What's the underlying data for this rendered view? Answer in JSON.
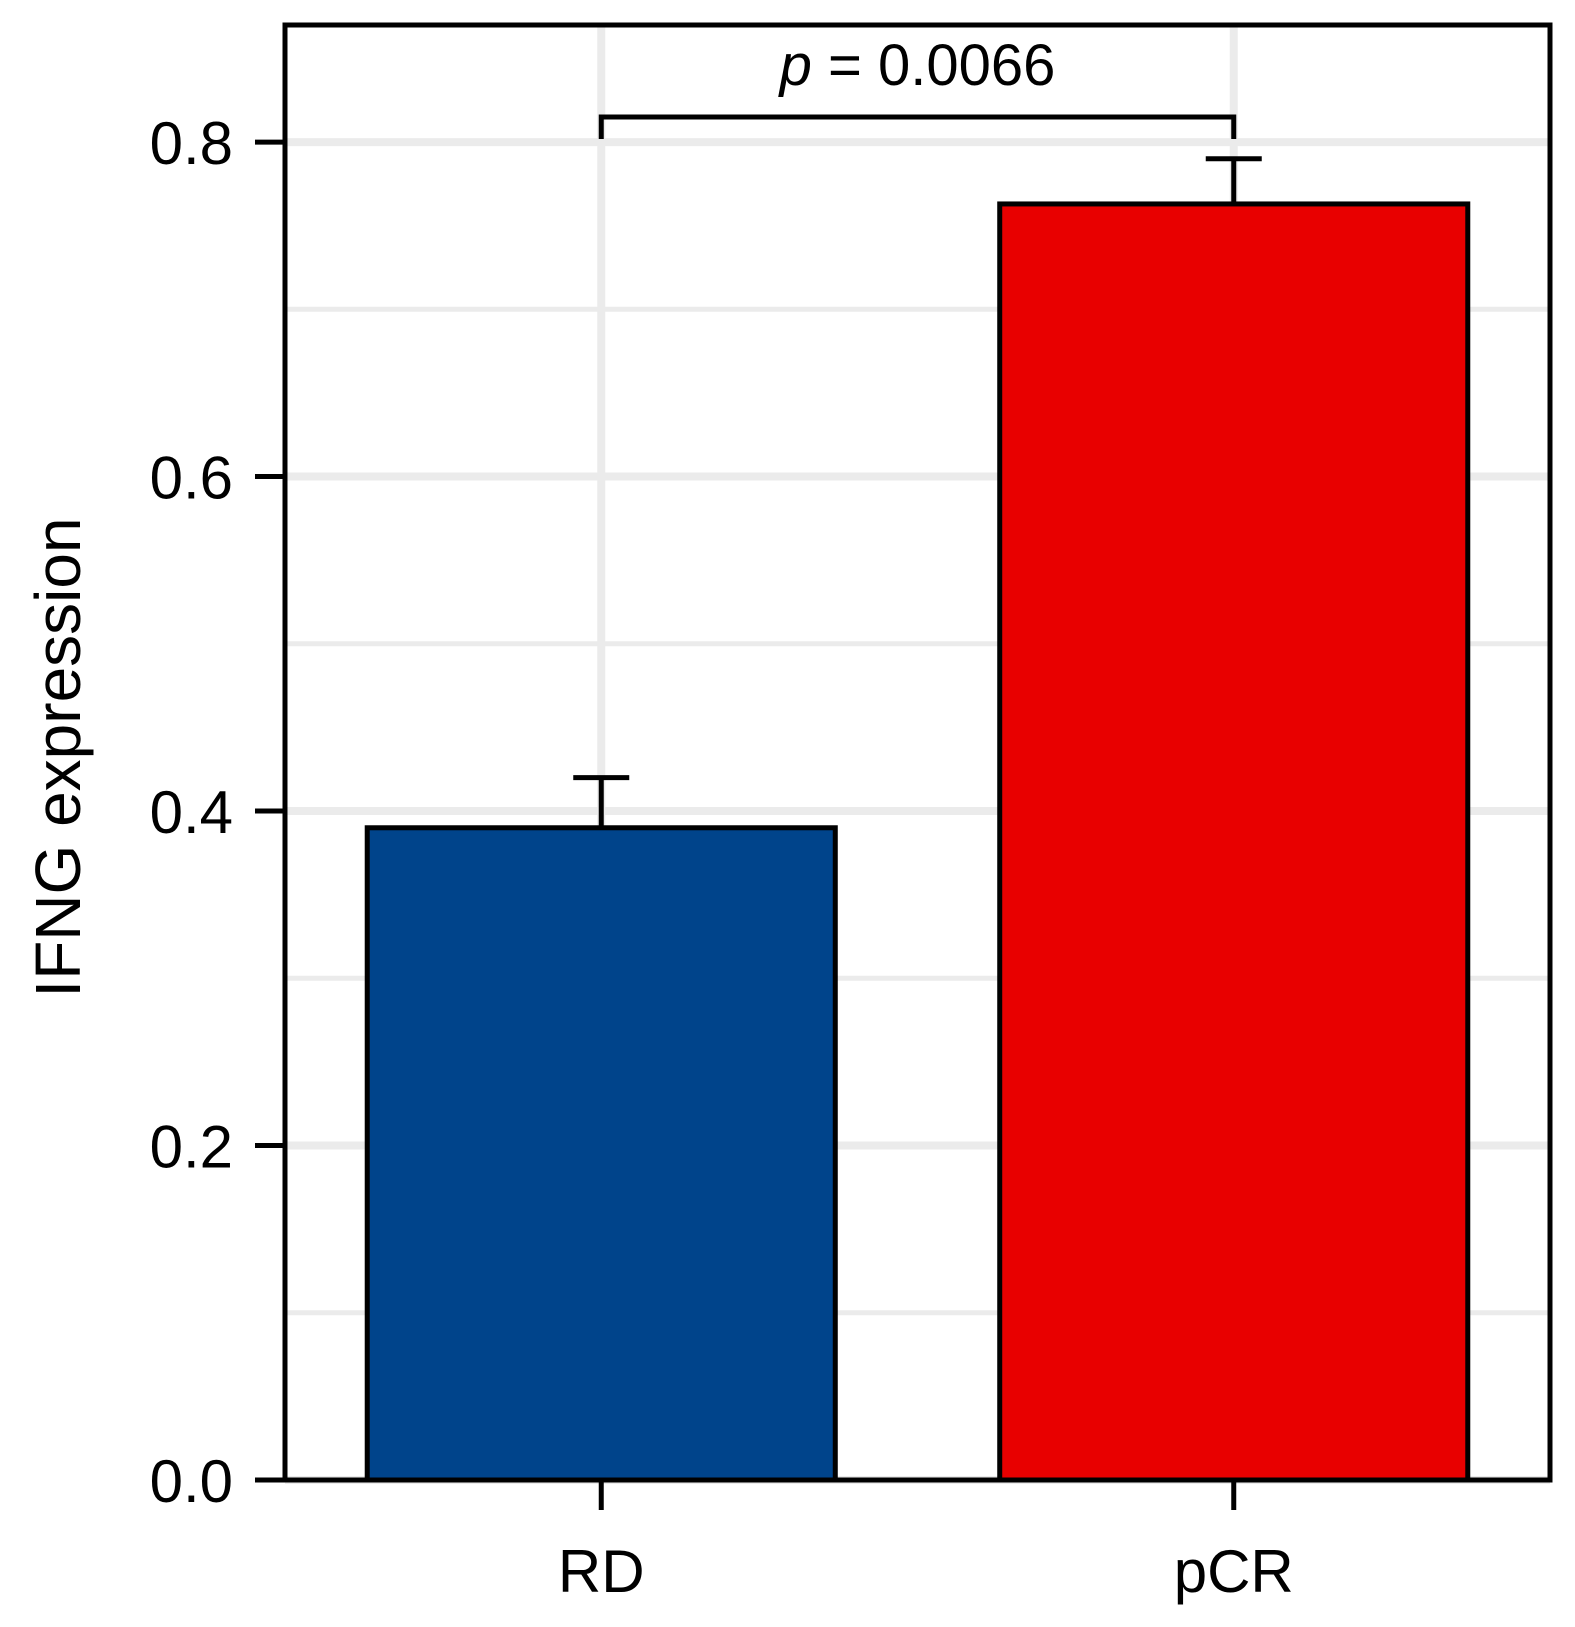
{
  "chart_data": {
    "type": "bar",
    "title": "",
    "xlabel": "",
    "ylabel": "IFNG expression",
    "categories": [
      "RD",
      "pCR"
    ],
    "values": [
      0.39,
      0.763
    ],
    "error_upper": [
      0.42,
      0.79
    ],
    "colors": [
      "#00448B",
      "#E80000"
    ],
    "ylim": [
      0,
      0.87
    ],
    "yticks": [
      0.0,
      0.2,
      0.4,
      0.6,
      0.8
    ],
    "ytick_labels": [
      "0.0",
      "0.2",
      "0.4",
      "0.6",
      "0.8"
    ],
    "grid": true,
    "annotation": {
      "p_symbol": "p",
      "equals": " = ",
      "p_value": "0.0066",
      "between": [
        "RD",
        "pCR"
      ],
      "bracket_y": 0.815
    },
    "grid_color": "#EBEBEB",
    "axis_color": "#000000"
  }
}
